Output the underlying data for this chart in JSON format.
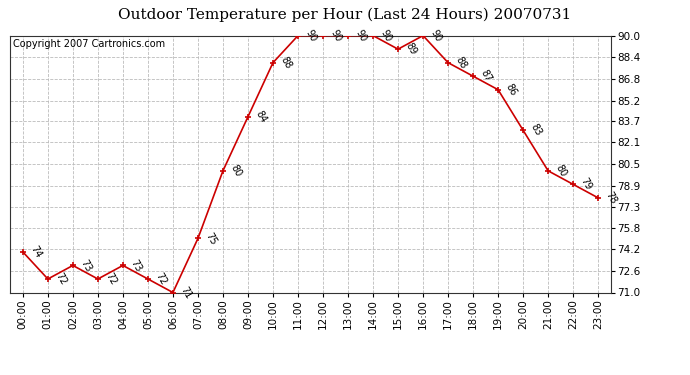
{
  "title": "Outdoor Temperature per Hour (Last 24 Hours) 20070731",
  "copyright": "Copyright 2007 Cartronics.com",
  "hours": [
    "00:00",
    "01:00",
    "02:00",
    "03:00",
    "04:00",
    "05:00",
    "06:00",
    "07:00",
    "08:00",
    "09:00",
    "10:00",
    "11:00",
    "12:00",
    "13:00",
    "14:00",
    "15:00",
    "16:00",
    "17:00",
    "18:00",
    "19:00",
    "20:00",
    "21:00",
    "22:00",
    "23:00"
  ],
  "temps": [
    74,
    72,
    73,
    72,
    73,
    72,
    71,
    75,
    80,
    84,
    88,
    90,
    90,
    90,
    90,
    89,
    90,
    88,
    87,
    86,
    83,
    80,
    79,
    78
  ],
  "ylim_min": 71.0,
  "ylim_max": 90.0,
  "yticks": [
    71.0,
    72.6,
    74.2,
    75.8,
    77.3,
    78.9,
    80.5,
    82.1,
    83.7,
    85.2,
    86.8,
    88.4,
    90.0
  ],
  "line_color": "#cc0000",
  "marker_color": "#cc0000",
  "bg_color": "#ffffff",
  "grid_color": "#bbbbbb",
  "title_fontsize": 11,
  "copyright_fontsize": 7,
  "label_fontsize": 7,
  "tick_fontsize": 7.5
}
